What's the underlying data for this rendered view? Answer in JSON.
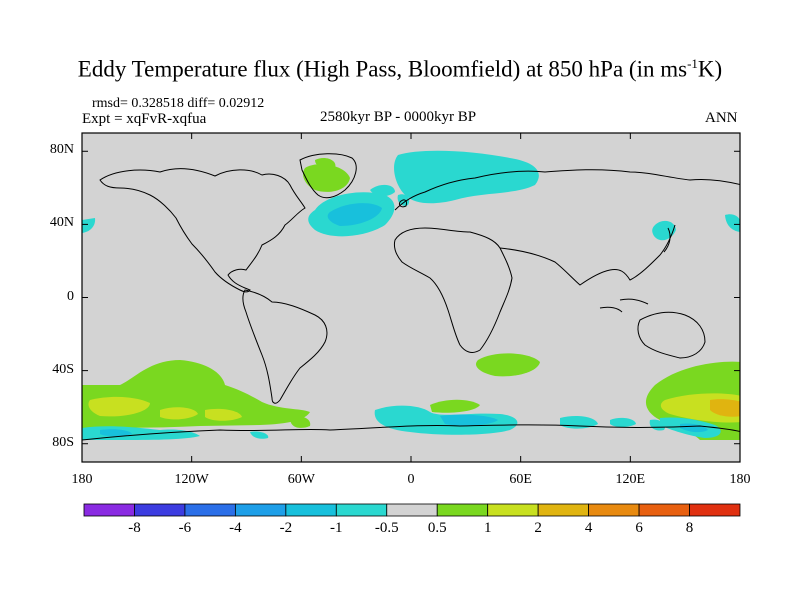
{
  "header": {
    "title_main": "Eddy Temperature flux (High Pass, Bloomfield) at 850 hPa (in ms",
    "title_sup": "-1",
    "title_end": "K)",
    "stats": "rmsd= 0.328518 diff= 0.02912",
    "experiment": "Expt = xqFvR-xqfua",
    "period": "2580kyr BP - 0000kyr BP",
    "season": "ANN"
  },
  "axes": {
    "lat_labels": [
      "80N",
      "40N",
      "0",
      "40S",
      "80S"
    ],
    "lat_values": [
      80,
      40,
      0,
      -40,
      -80
    ],
    "lon_labels": [
      "180",
      "120W",
      "60W",
      "0",
      "60E",
      "120E",
      "180"
    ],
    "lon_values": [
      -180,
      -120,
      -60,
      0,
      60,
      120,
      180
    ]
  },
  "colorbar": {
    "labels": [
      "-8",
      "-6",
      "-4",
      "-2",
      "-1",
      "-0.5",
      "0.5",
      "1",
      "2",
      "4",
      "6",
      "8"
    ],
    "colors": [
      "#8a2be2",
      "#3c3ce0",
      "#2b6fe8",
      "#1e9fe8",
      "#18c0dc",
      "#2ad8d0",
      "#d3d3d3",
      "#7ad820",
      "#c8e020",
      "#e0b410",
      "#e88a10",
      "#e86010",
      "#e03010"
    ]
  },
  "map": {
    "background_color": "#d3d3d3",
    "positive_color": "#7ad820",
    "strong_positive_color": "#c8e020",
    "orange_color": "#e0b410",
    "negative_color": "#2ad8d0",
    "strong_negative_color": "#18c0dc"
  }
}
